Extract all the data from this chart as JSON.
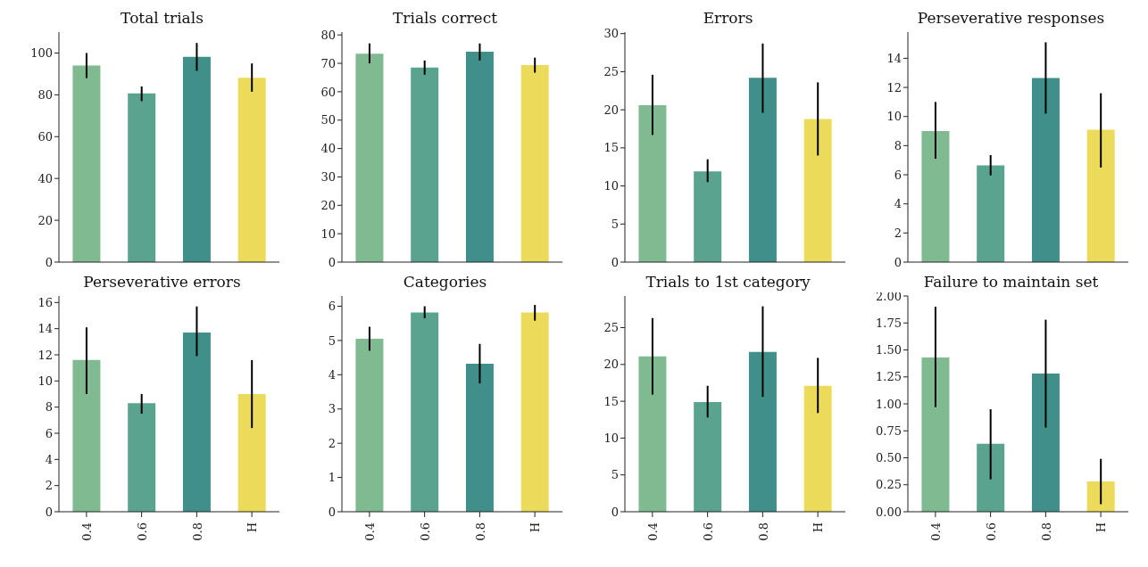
{
  "chart_data": [
    {
      "type": "bar",
      "title": "Total trials",
      "categories": [
        null,
        null,
        null,
        null
      ],
      "values": [
        94,
        80.7,
        98.2,
        88.2
      ],
      "errors": [
        [
          88,
          100
        ],
        [
          77,
          84
        ],
        [
          91.5,
          104.8
        ],
        [
          81.5,
          95
        ]
      ],
      "colors": [
        "#7fba91",
        "#5aa48f",
        "#408f8b",
        "#ecdb5b"
      ],
      "ylim": [
        0,
        110
      ],
      "yticks": [
        0,
        20,
        40,
        60,
        80,
        100
      ],
      "tick_labels": "y"
    },
    {
      "type": "bar",
      "title": "Trials correct",
      "categories": [
        null,
        null,
        null,
        null
      ],
      "values": [
        73.4,
        68.5,
        74.1,
        69.4
      ],
      "errors": [
        [
          70,
          77
        ],
        [
          66,
          71
        ],
        [
          71,
          77
        ],
        [
          66.7,
          72
        ]
      ],
      "colors": [
        "#7fba91",
        "#5aa48f",
        "#408f8b",
        "#ecdb5b"
      ],
      "ylim": [
        0,
        81
      ],
      "yticks": [
        0,
        10,
        20,
        30,
        40,
        50,
        60,
        70,
        80
      ],
      "tick_labels": "y"
    },
    {
      "type": "bar",
      "title": "Errors",
      "categories": [
        null,
        null,
        null,
        null
      ],
      "values": [
        20.6,
        11.9,
        24.2,
        18.8
      ],
      "errors": [
        [
          16.7,
          24.6
        ],
        [
          10.5,
          13.5
        ],
        [
          19.6,
          28.7
        ],
        [
          14,
          23.6
        ]
      ],
      "colors": [
        "#7fba91",
        "#5aa48f",
        "#408f8b",
        "#ecdb5b"
      ],
      "ylim": [
        0,
        30.2
      ],
      "yticks": [
        0,
        5,
        10,
        15,
        20,
        25,
        30
      ],
      "tick_labels": "y"
    },
    {
      "type": "bar",
      "title": "Perseverative responses",
      "categories": [
        null,
        null,
        null,
        null
      ],
      "values": [
        9.0,
        6.65,
        12.65,
        9.1
      ],
      "errors": [
        [
          7.1,
          11
        ],
        [
          5.95,
          7.35
        ],
        [
          10.2,
          15.1
        ],
        [
          6.5,
          11.6
        ]
      ],
      "colors": [
        "#7fba91",
        "#5aa48f",
        "#408f8b",
        "#ecdb5b"
      ],
      "ylim": [
        0,
        15.8
      ],
      "yticks": [
        0,
        2,
        4,
        6,
        8,
        10,
        12,
        14
      ],
      "tick_labels": "y"
    },
    {
      "type": "bar",
      "title": "Perseverative errors",
      "categories": [
        "0.4",
        "0.6",
        "0.8",
        "H"
      ],
      "values": [
        11.6,
        8.3,
        13.7,
        9.0
      ],
      "errors": [
        [
          9,
          14.1
        ],
        [
          7.5,
          9
        ],
        [
          11.9,
          15.7
        ],
        [
          6.4,
          11.6
        ]
      ],
      "colors": [
        "#7fba91",
        "#5aa48f",
        "#408f8b",
        "#ecdb5b"
      ],
      "ylim": [
        0,
        16.5
      ],
      "yticks": [
        0,
        2,
        4,
        6,
        8,
        10,
        12,
        14,
        16
      ]
    },
    {
      "type": "bar",
      "title": "Categories",
      "categories": [
        "0.4",
        "0.6",
        "0.8",
        "H"
      ],
      "values": [
        5.05,
        5.82,
        4.32,
        5.82
      ],
      "errors": [
        [
          4.7,
          5.4
        ],
        [
          5.65,
          6.0
        ],
        [
          3.75,
          4.9
        ],
        [
          5.58,
          6.04
        ]
      ],
      "colors": [
        "#7fba91",
        "#5aa48f",
        "#408f8b",
        "#ecdb5b"
      ],
      "ylim": [
        0,
        6.3
      ],
      "yticks": [
        0,
        1,
        2,
        3,
        4,
        5,
        6
      ]
    },
    {
      "type": "bar",
      "title": "Trials to 1st category",
      "categories": [
        "0.4",
        "0.6",
        "0.8",
        "H"
      ],
      "values": [
        21.1,
        14.9,
        21.7,
        17.1
      ],
      "errors": [
        [
          15.9,
          26.3
        ],
        [
          12.8,
          17.1
        ],
        [
          15.6,
          27.9
        ],
        [
          13.4,
          20.9
        ]
      ],
      "colors": [
        "#7fba91",
        "#5aa48f",
        "#408f8b",
        "#ecdb5b"
      ],
      "ylim": [
        0,
        29.3
      ],
      "yticks": [
        0,
        5,
        10,
        15,
        20,
        25
      ]
    },
    {
      "type": "bar",
      "title": "Failure to maintain set",
      "categories": [
        "0.4",
        "0.6",
        "0.8",
        "H"
      ],
      "values": [
        1.43,
        0.63,
        1.28,
        0.28
      ],
      "errors": [
        [
          0.97,
          1.9
        ],
        [
          0.3,
          0.95
        ],
        [
          0.78,
          1.78
        ],
        [
          0.07,
          0.49
        ]
      ],
      "colors": [
        "#7fba91",
        "#5aa48f",
        "#408f8b",
        "#ecdb5b"
      ],
      "ylim": [
        0,
        2.0
      ],
      "yticks": [
        {
          "value": 0,
          "label": "0.00"
        },
        {
          "value": 0.25,
          "label": "0.25"
        },
        {
          "value": 0.5,
          "label": "0.50"
        },
        {
          "value": 0.75,
          "label": "0.75"
        },
        {
          "value": 1,
          "label": "1.00"
        },
        {
          "value": 1.25,
          "label": "1.25"
        },
        {
          "value": 1.5,
          "label": "1.50"
        },
        {
          "value": 1.75,
          "label": "1.75"
        },
        {
          "value": 2,
          "label": "2.00"
        }
      ]
    }
  ]
}
